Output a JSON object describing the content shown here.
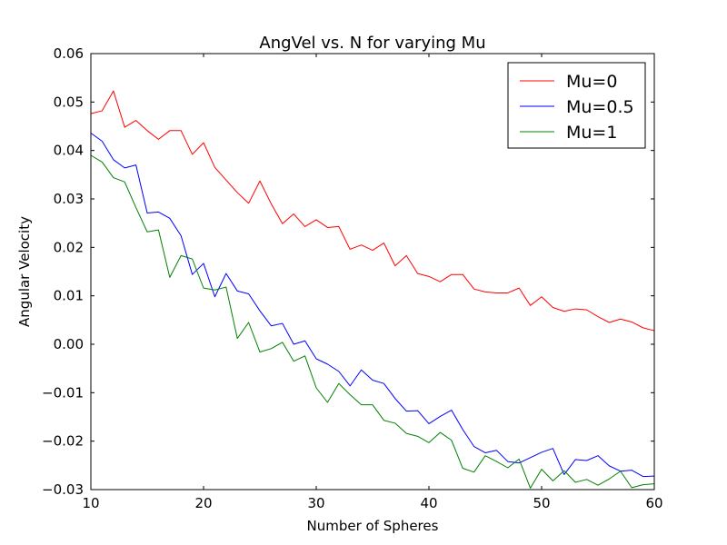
{
  "chart_data": {
    "type": "line",
    "title": "AngVel vs. N for varying Mu",
    "xlabel": "Number of Spheres",
    "ylabel": "Angular Velocity",
    "xlim": [
      10,
      60
    ],
    "ylim": [
      -0.03,
      0.06
    ],
    "xticks": [
      10,
      20,
      30,
      40,
      50,
      60
    ],
    "xtick_labels": [
      "10",
      "20",
      "30",
      "40",
      "50",
      "60"
    ],
    "yticks": [
      -0.03,
      -0.02,
      -0.01,
      0.0,
      0.01,
      0.02,
      0.03,
      0.04,
      0.05,
      0.06
    ],
    "ytick_labels": [
      "−0.03",
      "−0.02",
      "−0.01",
      "0.00",
      "0.01",
      "0.02",
      "0.03",
      "0.04",
      "0.05",
      "0.06"
    ],
    "grid": false,
    "legend_position": "top-right",
    "x": [
      10,
      11,
      12,
      13,
      14,
      15,
      16,
      17,
      18,
      19,
      20,
      21,
      22,
      23,
      24,
      25,
      26,
      27,
      28,
      29,
      30,
      31,
      32,
      33,
      34,
      35,
      36,
      37,
      38,
      39,
      40,
      41,
      42,
      43,
      44,
      45,
      46,
      47,
      48,
      49,
      50,
      51,
      52,
      53,
      54,
      55,
      56,
      57,
      58,
      59,
      60
    ],
    "series": [
      {
        "name": "Mu=0",
        "color": "#ff0000",
        "values": [
          0.0476,
          0.0482,
          0.0523,
          0.0448,
          0.0462,
          0.0441,
          0.0423,
          0.0441,
          0.0441,
          0.0392,
          0.0416,
          0.0365,
          0.0339,
          0.0313,
          0.0291,
          0.0337,
          0.029,
          0.0249,
          0.0269,
          0.0243,
          0.0257,
          0.0241,
          0.0243,
          0.0196,
          0.0205,
          0.0194,
          0.0209,
          0.0162,
          0.0183,
          0.0146,
          0.014,
          0.0129,
          0.0144,
          0.0144,
          0.0114,
          0.0108,
          0.0106,
          0.0106,
          0.0116,
          0.008,
          0.0098,
          0.0076,
          0.0068,
          0.0073,
          0.0071,
          0.0057,
          0.0045,
          0.0052,
          0.0046,
          0.0034,
          0.0028
        ]
      },
      {
        "name": "Mu=0.5",
        "color": "#0000ff",
        "values": [
          0.0436,
          0.0419,
          0.0381,
          0.0364,
          0.037,
          0.0271,
          0.0273,
          0.026,
          0.0224,
          0.0144,
          0.0167,
          0.0098,
          0.0146,
          0.011,
          0.0104,
          0.0069,
          0.0038,
          0.0043,
          0.0,
          0.0007,
          -0.003,
          -0.0041,
          -0.0056,
          -0.0086,
          -0.0053,
          -0.0074,
          -0.0081,
          -0.0112,
          -0.0138,
          -0.0137,
          -0.0164,
          -0.0149,
          -0.0136,
          -0.0176,
          -0.0211,
          -0.0224,
          -0.0219,
          -0.0242,
          -0.0245,
          -0.0234,
          -0.0223,
          -0.0215,
          -0.0269,
          -0.0238,
          -0.024,
          -0.023,
          -0.0251,
          -0.0262,
          -0.026,
          -0.0273,
          -0.0272
        ]
      },
      {
        "name": "Mu=1",
        "color": "#008000",
        "values": [
          0.039,
          0.0376,
          0.0344,
          0.0335,
          0.0282,
          0.0232,
          0.0236,
          0.0138,
          0.0183,
          0.0176,
          0.0116,
          0.0112,
          0.0118,
          0.0012,
          0.0045,
          -0.0016,
          -0.0009,
          0.0004,
          -0.0035,
          -0.0024,
          -0.009,
          -0.012,
          -0.0081,
          -0.0104,
          -0.0125,
          -0.0125,
          -0.0157,
          -0.0163,
          -0.0184,
          -0.019,
          -0.0203,
          -0.0182,
          -0.0198,
          -0.0256,
          -0.0264,
          -0.023,
          -0.0242,
          -0.0255,
          -0.0237,
          -0.0297,
          -0.0258,
          -0.0282,
          -0.0261,
          -0.0285,
          -0.0279,
          -0.0291,
          -0.0278,
          -0.0262,
          -0.0296,
          -0.029,
          -0.0288
        ]
      }
    ]
  }
}
